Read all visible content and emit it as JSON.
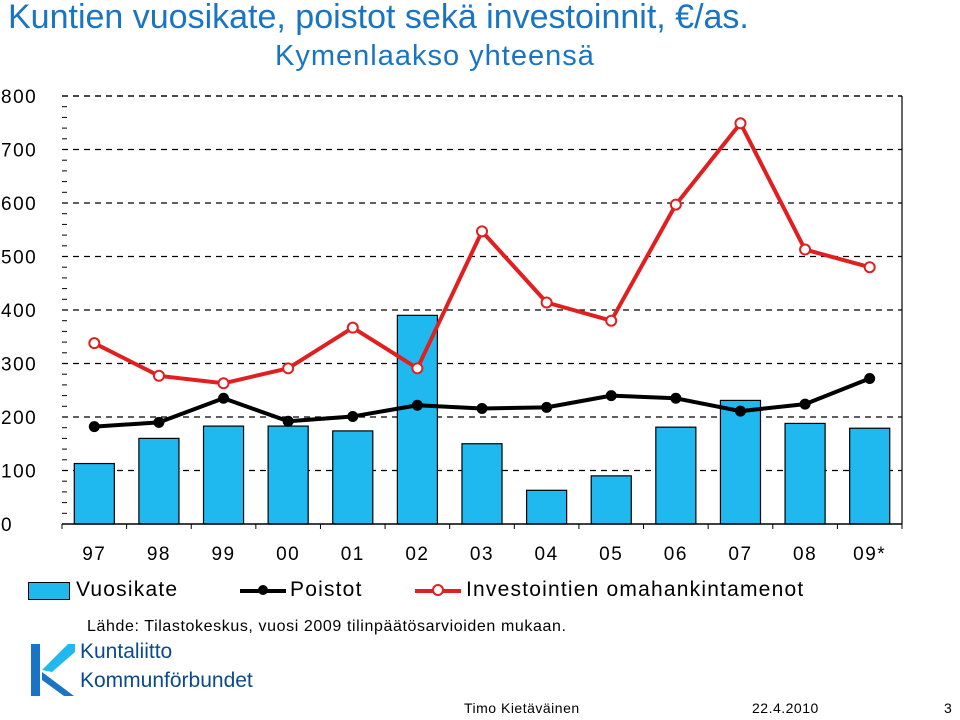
{
  "title": {
    "line1": "Kuntien vuosikate, poistot sekä investoinnit, €/as.",
    "line2": "Kymenlaakso yhteensä"
  },
  "chart_data": {
    "type": "bar+line",
    "categories": [
      "97",
      "98",
      "99",
      "00",
      "01",
      "02",
      "03",
      "04",
      "05",
      "06",
      "07",
      "08",
      "09*"
    ],
    "ylim": [
      0,
      800
    ],
    "yticks": [
      "0",
      "100",
      "200",
      "300",
      "400",
      "500",
      "600",
      "700",
      "800"
    ],
    "grid": "dashed horizontal",
    "legend_position": "bottom",
    "series": [
      {
        "name": "Vuosikate",
        "kind": "bar",
        "color": "#1fb9ef",
        "values": [
          113,
          160,
          183,
          183,
          174,
          390,
          150,
          63,
          90,
          181,
          231,
          188,
          179
        ]
      },
      {
        "name": "Poistot",
        "kind": "line",
        "color": "#000000",
        "values": [
          182,
          190,
          235,
          192,
          201,
          222,
          216,
          218,
          240,
          235,
          211,
          224,
          272
        ]
      },
      {
        "name": "Investointien omahankintamenot",
        "kind": "line",
        "color": "#e02020",
        "values": [
          338,
          277,
          263,
          291,
          367,
          291,
          547,
          414,
          380,
          597,
          749,
          513,
          480
        ]
      }
    ]
  },
  "source": "Lähde: Tilastokeskus, vuosi 2009 tilinpäätösarvioiden mukaan.",
  "logo": {
    "line1": "Kuntaliitto",
    "line2": "Kommunförbundet"
  },
  "footer": {
    "author": "Timo Kietäväinen",
    "date": "22.4.2010",
    "page": "3"
  }
}
